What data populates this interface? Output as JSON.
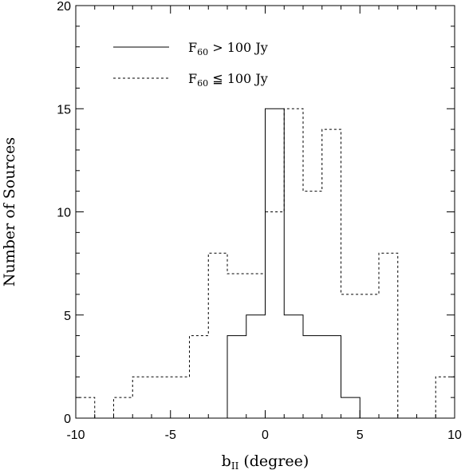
{
  "chart_data": {
    "type": "histogram-step",
    "title": "",
    "xlabel_main": "b",
    "xlabel_sub": "II",
    "xlabel_unit": "(degree)",
    "ylabel": "Number of Sources",
    "xlim": [
      -10,
      10
    ],
    "ylim": [
      0,
      20
    ],
    "xticks": [
      -10,
      -5,
      0,
      5,
      10
    ],
    "yticks": [
      0,
      5,
      10,
      15,
      20
    ],
    "bin_edges": [
      -10,
      -9,
      -8,
      -7,
      -6,
      -5,
      -4,
      -3,
      -2,
      -1,
      0,
      1,
      2,
      3,
      4,
      5,
      6,
      7,
      8,
      9,
      10
    ],
    "bin_centers": [
      -9.5,
      -8.5,
      -7.5,
      -6.5,
      -5.5,
      -4.5,
      -3.5,
      -2.5,
      -1.5,
      -0.5,
      0.5,
      1.5,
      2.5,
      3.5,
      4.5,
      5.5,
      6.5,
      7.5,
      8.5,
      9.5
    ],
    "series": [
      {
        "name": "F60 > 100 Jy",
        "style": "solid",
        "values": [
          0,
          0,
          0,
          0,
          0,
          0,
          0,
          0,
          4,
          5,
          15,
          5,
          4,
          4,
          1,
          0,
          0,
          0,
          0,
          0
        ]
      },
      {
        "name": "F60 ≦ 100 Jy",
        "style": "dashed",
        "values": [
          1,
          0,
          1,
          2,
          2,
          2,
          4,
          8,
          7,
          7,
          10,
          15,
          11,
          14,
          6,
          6,
          8,
          0,
          0,
          2
        ]
      }
    ],
    "legend": {
      "placement": "top-left",
      "entries": [
        {
          "prefix": "F",
          "sub": "60",
          "rest": " >  100  Jy",
          "style": "solid"
        },
        {
          "prefix": "F",
          "sub": "60",
          "rest": " ≦  100  Jy",
          "style": "dashed"
        }
      ]
    },
    "grid": false
  }
}
